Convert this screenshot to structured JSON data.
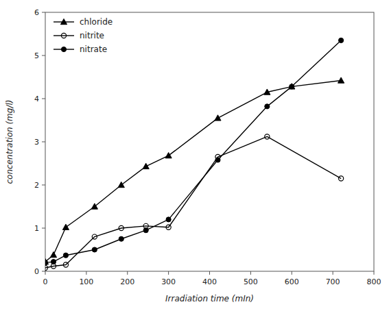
{
  "chart_data": {
    "type": "line",
    "x_label": "Irradiation time (mIn)",
    "y_label": "concentration (mg/l)",
    "xlim": [
      0,
      800
    ],
    "ylim": [
      0,
      6
    ],
    "xticks": [
      0,
      100,
      200,
      300,
      400,
      500,
      600,
      700,
      800
    ],
    "yticks": [
      0,
      1,
      2,
      3,
      4,
      5,
      6
    ],
    "grid": false,
    "legend": "upper left",
    "series": [
      {
        "name": "chloride",
        "color": "#000000",
        "marker": "triangle",
        "line_style": "solid",
        "x": [
          0,
          20,
          50,
          120,
          185,
          245,
          300,
          420,
          540,
          600,
          720
        ],
        "values": [
          0.22,
          0.38,
          1.02,
          1.5,
          2.0,
          2.43,
          2.68,
          3.55,
          4.15,
          4.28,
          4.42
        ]
      },
      {
        "name": "nitrite",
        "color": "#000000",
        "marker": "open-circle",
        "line_style": "solid",
        "x": [
          0,
          20,
          50,
          120,
          185,
          245,
          300,
          420,
          540,
          720
        ],
        "values": [
          0.08,
          0.12,
          0.15,
          0.8,
          1.0,
          1.05,
          1.02,
          2.65,
          3.12,
          2.15
        ]
      },
      {
        "name": "nitrate",
        "color": "#000000",
        "marker": "circle",
        "line_style": "solid",
        "x": [
          0,
          20,
          50,
          120,
          185,
          245,
          300,
          420,
          540,
          600,
          720
        ],
        "values": [
          0.2,
          0.22,
          0.37,
          0.5,
          0.75,
          0.95,
          1.2,
          2.58,
          3.82,
          4.28,
          5.35
        ]
      }
    ]
  }
}
